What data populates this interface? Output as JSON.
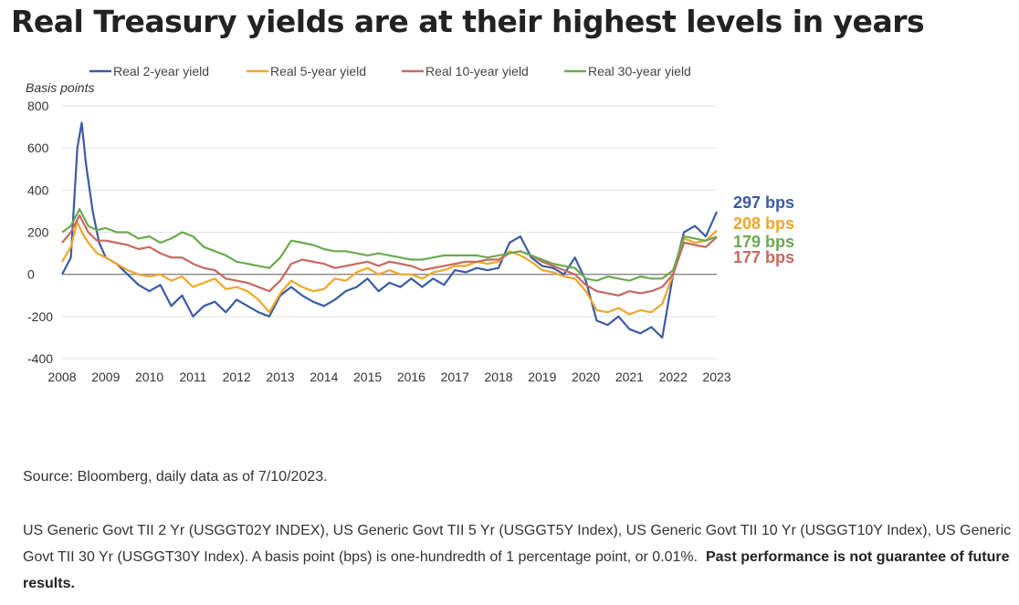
{
  "page": {
    "title": "Real Treasury yields are at their highest levels in years",
    "source": "Source: Bloomberg, daily data as of 7/10/2023.",
    "notes": "US Generic Govt TII 2 Yr (USGGT02Y INDEX), US Generic Govt TII 5 Yr (USGGT5Y Index), US Generic Govt TII 10 Yr (USGGT10Y Index), US Generic Govt TII 30 Yr (USGGT30Y Index). A basis point (bps) is one-hundredth of 1 percentage point, or 0.01%.",
    "disclaimer": "Past performance is not guarantee of future results."
  },
  "chart_data": {
    "type": "line",
    "title": "Real Treasury yields are at their highest levels in years",
    "ylabel": "Basis points",
    "xlabel": "",
    "ylim": [
      -400,
      800
    ],
    "yticks": [
      -400,
      -200,
      0,
      200,
      400,
      600,
      800
    ],
    "xlim": [
      2008,
      2023
    ],
    "xticks": [
      "2008",
      "2009",
      "2010",
      "2011",
      "2012",
      "2013",
      "2014",
      "2015",
      "2016",
      "2017",
      "2018",
      "2019",
      "2020",
      "2021",
      "2022",
      "2023"
    ],
    "grid": "horizontal",
    "legend_position": "top",
    "series": [
      {
        "name": "Real 2-year yield",
        "color": "#3b5ba5",
        "end_label": "297 bps",
        "x": [
          2008.0,
          2008.2,
          2008.35,
          2008.45,
          2008.55,
          2008.7,
          2008.85,
          2009.0,
          2009.25,
          2009.5,
          2009.75,
          2010.0,
          2010.25,
          2010.5,
          2010.75,
          2011.0,
          2011.25,
          2011.5,
          2011.75,
          2012.0,
          2012.25,
          2012.5,
          2012.75,
          2013.0,
          2013.25,
          2013.5,
          2013.75,
          2014.0,
          2014.25,
          2014.5,
          2014.75,
          2015.0,
          2015.25,
          2015.5,
          2015.75,
          2016.0,
          2016.25,
          2016.5,
          2016.75,
          2017.0,
          2017.25,
          2017.5,
          2017.75,
          2018.0,
          2018.25,
          2018.5,
          2018.75,
          2019.0,
          2019.25,
          2019.5,
          2019.75,
          2020.0,
          2020.25,
          2020.5,
          2020.75,
          2021.0,
          2021.25,
          2021.5,
          2021.75,
          2022.0,
          2022.25,
          2022.5,
          2022.75,
          2023.0
        ],
        "y": [
          0,
          80,
          600,
          720,
          520,
          300,
          150,
          80,
          50,
          0,
          -50,
          -80,
          -50,
          -150,
          -100,
          -200,
          -150,
          -130,
          -180,
          -120,
          -150,
          -180,
          -200,
          -100,
          -60,
          -100,
          -130,
          -150,
          -120,
          -80,
          -60,
          -20,
          -80,
          -40,
          -60,
          -20,
          -60,
          -20,
          -50,
          20,
          10,
          30,
          20,
          30,
          150,
          180,
          80,
          40,
          30,
          0,
          80,
          -30,
          -220,
          -240,
          -200,
          -260,
          -280,
          -250,
          -300,
          0,
          200,
          230,
          180,
          297
        ]
      },
      {
        "name": "Real 5-year yield",
        "color": "#f2a62a",
        "end_label": "208 bps",
        "x": [
          2008.0,
          2008.2,
          2008.35,
          2008.45,
          2008.6,
          2008.8,
          2009.0,
          2009.25,
          2009.5,
          2009.75,
          2010.0,
          2010.25,
          2010.5,
          2010.75,
          2011.0,
          2011.25,
          2011.5,
          2011.75,
          2012.0,
          2012.25,
          2012.5,
          2012.75,
          2013.0,
          2013.25,
          2013.5,
          2013.75,
          2014.0,
          2014.25,
          2014.5,
          2014.75,
          2015.0,
          2015.25,
          2015.5,
          2015.75,
          2016.0,
          2016.25,
          2016.5,
          2016.75,
          2017.0,
          2017.25,
          2017.5,
          2017.75,
          2018.0,
          2018.25,
          2018.5,
          2018.75,
          2019.0,
          2019.25,
          2019.5,
          2019.75,
          2020.0,
          2020.25,
          2020.5,
          2020.75,
          2021.0,
          2021.25,
          2021.5,
          2021.75,
          2022.0,
          2022.25,
          2022.5,
          2022.75,
          2023.0
        ],
        "y": [
          60,
          130,
          250,
          200,
          150,
          100,
          80,
          50,
          20,
          0,
          -10,
          0,
          -30,
          -10,
          -60,
          -40,
          -20,
          -70,
          -60,
          -80,
          -120,
          -180,
          -90,
          -30,
          -60,
          -80,
          -70,
          -20,
          -30,
          10,
          30,
          0,
          20,
          0,
          0,
          -20,
          10,
          20,
          40,
          40,
          60,
          50,
          60,
          110,
          90,
          60,
          20,
          10,
          -10,
          -20,
          -80,
          -170,
          -180,
          -160,
          -190,
          -170,
          -180,
          -140,
          0,
          170,
          150,
          160,
          208
        ]
      },
      {
        "name": "Real 10-year yield",
        "color": "#c8675d",
        "end_label": "177 bps",
        "x": [
          2008.0,
          2008.2,
          2008.4,
          2008.6,
          2008.8,
          2009.0,
          2009.25,
          2009.5,
          2009.75,
          2010.0,
          2010.25,
          2010.5,
          2010.75,
          2011.0,
          2011.25,
          2011.5,
          2011.75,
          2012.0,
          2012.25,
          2012.5,
          2012.75,
          2013.0,
          2013.25,
          2013.5,
          2013.75,
          2014.0,
          2014.25,
          2014.5,
          2014.75,
          2015.0,
          2015.25,
          2015.5,
          2015.75,
          2016.0,
          2016.25,
          2016.5,
          2016.75,
          2017.0,
          2017.25,
          2017.5,
          2017.75,
          2018.0,
          2018.25,
          2018.5,
          2018.75,
          2019.0,
          2019.25,
          2019.5,
          2019.75,
          2020.0,
          2020.25,
          2020.5,
          2020.75,
          2021.0,
          2021.25,
          2021.5,
          2021.75,
          2022.0,
          2022.25,
          2022.5,
          2022.75,
          2023.0
        ],
        "y": [
          150,
          200,
          280,
          200,
          160,
          160,
          150,
          140,
          120,
          130,
          100,
          80,
          80,
          50,
          30,
          20,
          -20,
          -30,
          -40,
          -60,
          -80,
          -30,
          50,
          70,
          60,
          50,
          30,
          40,
          50,
          60,
          40,
          60,
          50,
          40,
          20,
          30,
          40,
          50,
          60,
          60,
          70,
          70,
          100,
          110,
          90,
          60,
          40,
          20,
          0,
          -50,
          -80,
          -90,
          -100,
          -80,
          -90,
          -80,
          -60,
          0,
          150,
          140,
          130,
          177
        ]
      },
      {
        "name": "Real 30-year yield",
        "color": "#6aaa4e",
        "end_label": "179 bps",
        "x": [
          2008.0,
          2008.2,
          2008.4,
          2008.6,
          2008.8,
          2009.0,
          2009.25,
          2009.5,
          2009.75,
          2010.0,
          2010.25,
          2010.5,
          2010.75,
          2011.0,
          2011.25,
          2011.5,
          2011.75,
          2012.0,
          2012.25,
          2012.5,
          2012.75,
          2013.0,
          2013.25,
          2013.5,
          2013.75,
          2014.0,
          2014.25,
          2014.5,
          2014.75,
          2015.0,
          2015.25,
          2015.5,
          2015.75,
          2016.0,
          2016.25,
          2016.5,
          2016.75,
          2017.0,
          2017.25,
          2017.5,
          2017.75,
          2018.0,
          2018.25,
          2018.5,
          2018.75,
          2019.0,
          2019.25,
          2019.5,
          2019.75,
          2020.0,
          2020.25,
          2020.5,
          2020.75,
          2021.0,
          2021.25,
          2021.5,
          2021.75,
          2022.0,
          2022.25,
          2022.5,
          2022.75,
          2023.0
        ],
        "y": [
          200,
          230,
          310,
          230,
          210,
          220,
          200,
          200,
          170,
          180,
          150,
          170,
          200,
          180,
          130,
          110,
          90,
          60,
          50,
          40,
          30,
          80,
          160,
          150,
          140,
          120,
          110,
          110,
          100,
          90,
          100,
          90,
          80,
          70,
          70,
          80,
          90,
          90,
          90,
          90,
          80,
          90,
          100,
          110,
          90,
          70,
          50,
          40,
          30,
          -20,
          -30,
          -10,
          -20,
          -30,
          -10,
          -20,
          -20,
          20,
          180,
          170,
          160,
          179
        ]
      }
    ]
  }
}
